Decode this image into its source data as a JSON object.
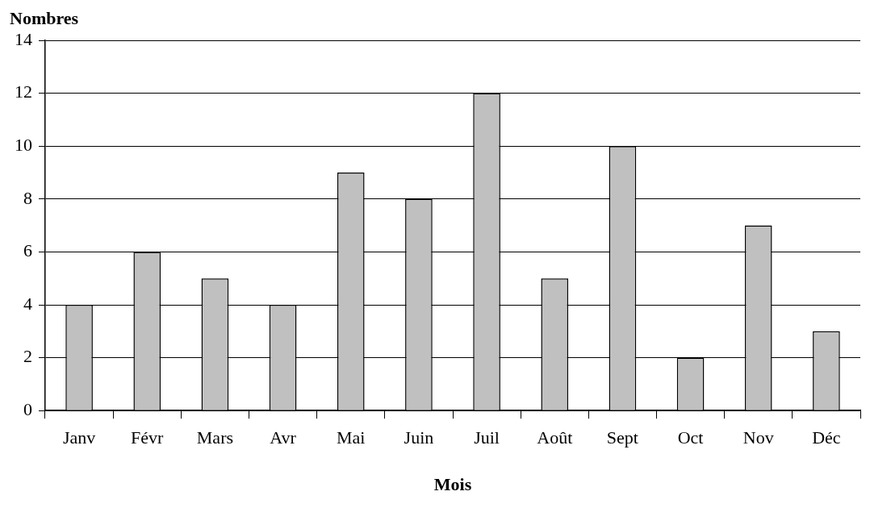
{
  "chart_data": {
    "type": "bar",
    "ylabel": "Nombres",
    "xlabel": "Mois",
    "categories": [
      "Janv",
      "Févr",
      "Mars",
      "Avr",
      "Mai",
      "Juin",
      "Juil",
      "Août",
      "Sept",
      "Oct",
      "Nov",
      "Déc"
    ],
    "values": [
      4,
      6,
      5,
      4,
      9,
      8,
      12,
      5,
      10,
      2,
      7,
      3
    ],
    "color": "#c0c0c0",
    "ylim": [
      0,
      14
    ],
    "yticks": [
      0,
      2,
      4,
      6,
      8,
      10,
      12,
      14
    ],
    "grid": "y",
    "legend": false
  }
}
